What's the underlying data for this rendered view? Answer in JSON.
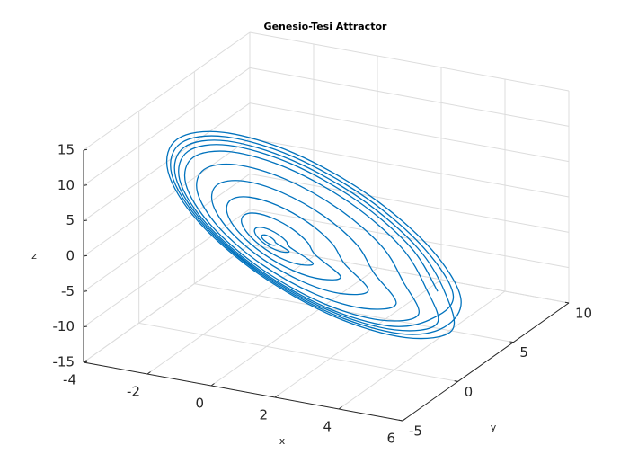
{
  "chart_data": {
    "type": "line3d",
    "title": "Genesio-Tesi Attractor",
    "xlabel": "x",
    "ylabel": "y",
    "zlabel": "z",
    "color": "#0072bd",
    "grid": true,
    "xlim": [
      -4,
      6
    ],
    "ylim": [
      -5,
      10
    ],
    "zlim": [
      -15,
      15
    ],
    "xticks": [
      -4,
      -2,
      0,
      2,
      4,
      6
    ],
    "yticks": [
      -5,
      0,
      5,
      10
    ],
    "zticks": [
      -15,
      -10,
      -5,
      0,
      5,
      10,
      15
    ],
    "x": [
      0.29,
      0.26,
      0.18,
      0.08,
      -0.03,
      -0.11,
      -0.14,
      -0.11,
      -0.03,
      0.08,
      0.18,
      0.26,
      0.7,
      0.63,
      0.44,
      0.18,
      -0.08,
      -0.27,
      -0.34,
      -0.27,
      -0.08,
      0.18,
      0.44,
      0.63,
      1.45,
      1.31,
      0.91,
      0.38,
      -0.16,
      -0.56,
      -0.7,
      -0.56,
      -0.16,
      0.38,
      0.91,
      1.31,
      2.32,
      2.09,
      1.46,
      0.6,
      -0.26,
      -0.89,
      -1.12,
      -0.89,
      -0.26,
      0.6,
      1.46,
      2.09,
      3.19,
      2.87,
      2.01,
      0.83,
      -0.36,
      -1.22,
      -1.54,
      -1.22,
      -0.36,
      0.83,
      2.01,
      2.87,
      4.06,
      3.66,
      2.56,
      1.05,
      -0.46,
      -1.56,
      -1.96,
      -1.56,
      -0.46,
      1.05,
      2.56,
      3.66,
      4.76,
      4.28,
      2.99,
      1.23,
      -0.53,
      -1.82,
      -2.3,
      -1.82,
      -0.53,
      1.23,
      2.99,
      4.28,
      5.34,
      4.81,
      3.36,
      1.38,
      -0.6,
      -2.05,
      -2.58,
      -2.05,
      -0.6,
      1.38,
      3.36,
      4.81,
      5.8,
      5.22,
      3.65,
      1.5,
      -0.65,
      -2.22,
      -2.8,
      -2.22,
      -0.65,
      1.5,
      3.65,
      5.22,
      5.57,
      5.02,
      3.5,
      1.44,
      -0.62,
      -2.14,
      -2.69,
      -2.14,
      -0.62,
      1.44,
      3.5,
      5.02,
      5.1,
      4.6,
      3.21,
      1.32,
      -0.57,
      -1.96,
      -2.46,
      -1.96,
      -0.57,
      1.32,
      3.21,
      4.6
    ],
    "y": [
      0,
      -0.13,
      -0.22,
      -0.25,
      -0.22,
      -0.13,
      0,
      0.13,
      0.22,
      0.25,
      0.22,
      0.13,
      0,
      -0.3,
      -0.52,
      -0.6,
      -0.52,
      -0.3,
      0,
      0.3,
      0.52,
      0.6,
      0.52,
      0.3,
      0,
      -0.63,
      -1.08,
      -1.25,
      -1.08,
      -0.63,
      0,
      0.63,
      1.08,
      1.25,
      1.08,
      0.63,
      0,
      -1,
      -1.73,
      -2,
      -1.73,
      -1,
      0,
      1,
      1.73,
      2,
      1.73,
      1,
      0,
      -1.38,
      -2.38,
      -2.75,
      -2.38,
      -1.38,
      0,
      1.38,
      2.38,
      2.75,
      2.38,
      1.38,
      0,
      -1.75,
      -3.03,
      -3.5,
      -3.03,
      -1.75,
      0,
      1.75,
      3.03,
      3.5,
      3.03,
      1.75,
      0,
      -2.05,
      -3.55,
      -4.1,
      -3.55,
      -2.05,
      0,
      2.05,
      3.55,
      4.1,
      3.55,
      2.05,
      0,
      -2.3,
      -3.98,
      -4.6,
      -3.98,
      -2.3,
      0,
      2.3,
      3.98,
      4.6,
      3.98,
      2.3,
      0,
      -2.5,
      -4.33,
      -5,
      -4.33,
      -2.5,
      0,
      2.5,
      4.33,
      5,
      4.33,
      2.5,
      0,
      -2.4,
      -4.16,
      -4.8,
      -4.16,
      -2.4,
      0,
      2.4,
      4.16,
      4.8,
      4.16,
      2.4,
      0,
      -2.2,
      -3.81,
      -4.4,
      -3.81,
      -2.2,
      0,
      2.2,
      3.81,
      4.4,
      3.81,
      2.2
    ],
    "z": [
      -0.4,
      -0.33,
      -0.15,
      0.1,
      0.35,
      0.53,
      0.6,
      0.53,
      0.35,
      0.1,
      -0.15,
      -0.33,
      -0.96,
      -0.8,
      -0.36,
      0.24,
      0.84,
      1.28,
      1.44,
      1.28,
      0.84,
      0.24,
      -0.36,
      -0.8,
      -2,
      -1.67,
      -0.75,
      0.5,
      1.75,
      2.67,
      3,
      2.67,
      1.75,
      0.5,
      -0.75,
      -1.67,
      -3.2,
      -2.66,
      -1.2,
      0.8,
      2.8,
      4.26,
      4.8,
      4.26,
      2.8,
      0.8,
      -1.2,
      -2.66,
      -4.4,
      -3.66,
      -1.65,
      1.1,
      3.85,
      5.86,
      6.6,
      5.86,
      3.85,
      1.1,
      -1.65,
      -3.66,
      -5.6,
      -4.66,
      -2.1,
      1.4,
      4.9,
      7.46,
      8.4,
      7.46,
      4.9,
      1.4,
      -2.1,
      -4.66,
      -6.56,
      -5.46,
      -2.46,
      1.64,
      5.74,
      8.74,
      9.84,
      8.74,
      5.74,
      1.64,
      -2.46,
      -5.46,
      -7.36,
      -6.13,
      -2.76,
      1.84,
      6.44,
      9.81,
      11.04,
      9.81,
      6.44,
      1.84,
      -2.76,
      -6.13,
      -8,
      -6.66,
      -3,
      2,
      7,
      10.66,
      12,
      10.66,
      7,
      2,
      -3,
      -6.66,
      -7.68,
      -6.39,
      -2.88,
      1.92,
      6.72,
      10.23,
      11.52,
      10.23,
      6.72,
      1.92,
      -2.88,
      -6.39,
      -7.04,
      -5.86,
      -2.64,
      1.76,
      6.16,
      9.38,
      10.56,
      9.38,
      6.16,
      1.76,
      -2.64,
      -5.86
    ]
  }
}
